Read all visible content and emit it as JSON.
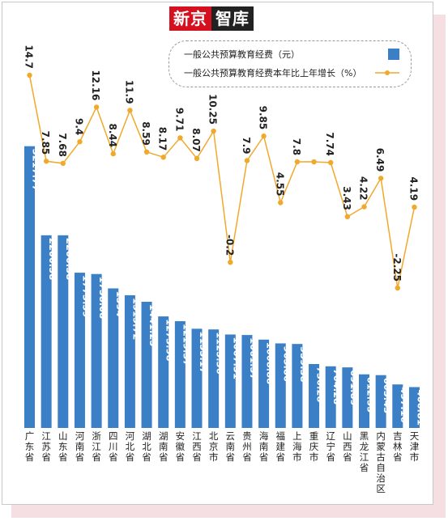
{
  "brand": {
    "part1": "新京",
    "part2": "智库"
  },
  "legend": {
    "bar_label": "一般公共预算教育经费（元）",
    "line_label": "一般公共预算教育经费本年比上年增长（%）"
  },
  "colors": {
    "bar": "#3b7fc6",
    "line": "#f0a92b",
    "bar_text": "#ffffff",
    "axis_text": "#222222"
  },
  "chart_data": {
    "type": "bar",
    "categories": [
      "广东省",
      "江苏省",
      "山东省",
      "河南省",
      "浙江省",
      "四川省",
      "河北省",
      "湖北省",
      "湖南省",
      "安徽省",
      "江西省",
      "北京市",
      "云南省",
      "贵州省",
      "海南省",
      "福建省",
      "上海市",
      "重庆市",
      "辽宁省",
      "山西省",
      "黑龙江省",
      "内蒙古自治区",
      "吉林省",
      "天津市"
    ],
    "series": [
      {
        "name": "一般公共预算教育经费（元）",
        "type": "bar",
        "values": [
          3217.77,
          2200.58,
          2200.58,
          1773.39,
          1758.08,
          1594,
          1515.72,
          1441.25,
          1273.98,
          1219.37,
          1133.17,
          1125.36,
          1067.31,
          1061.57,
          1008.88,
          965.86,
          959.38,
          730.28,
          704.28,
          691.89,
          612.55,
          603.43,
          497.16,
          466.81
        ],
        "labels": [
          "3217.77",
          "2200.58",
          "2200.58",
          "1773.39",
          "1758.08",
          "1594",
          "1515.72",
          "1441.25",
          "1273.98",
          "1219.37",
          "1133.17",
          "1125.36",
          "1067.31",
          "1061.57",
          "1008.88",
          "965.86",
          "959.38",
          "730.28",
          "704.28",
          "691.89",
          "612.55",
          "603.43",
          "497.16",
          "466.81"
        ]
      },
      {
        "name": "一般公共预算教育经费本年比上年增长（%）",
        "type": "line",
        "values": [
          14.7,
          7.85,
          7.68,
          9.4,
          12.16,
          8.44,
          11.9,
          8.59,
          8.17,
          9.71,
          8.07,
          10.25,
          -0.2,
          7.9,
          9.85,
          4.55,
          7.8,
          7.8,
          7.74,
          3.43,
          4.22,
          6.49,
          -2.25,
          4.19
        ],
        "labels": [
          "14.7",
          "7.85",
          "7.68",
          "9.4",
          "12.16",
          "8.44",
          "11.9",
          "8.59",
          "8.17",
          "9.71",
          "8.07",
          "10.25",
          "-0.2",
          "7.9",
          "9.85",
          "4.55",
          "7.8",
          "",
          "7.74",
          "3.43",
          "4.22",
          "6.49",
          "-2.25",
          "4.19"
        ]
      }
    ],
    "bar_ylim": [
      0,
      3400
    ],
    "line_ylim": [
      -5,
      15
    ],
    "grid": false,
    "legend_position": "top-right"
  }
}
